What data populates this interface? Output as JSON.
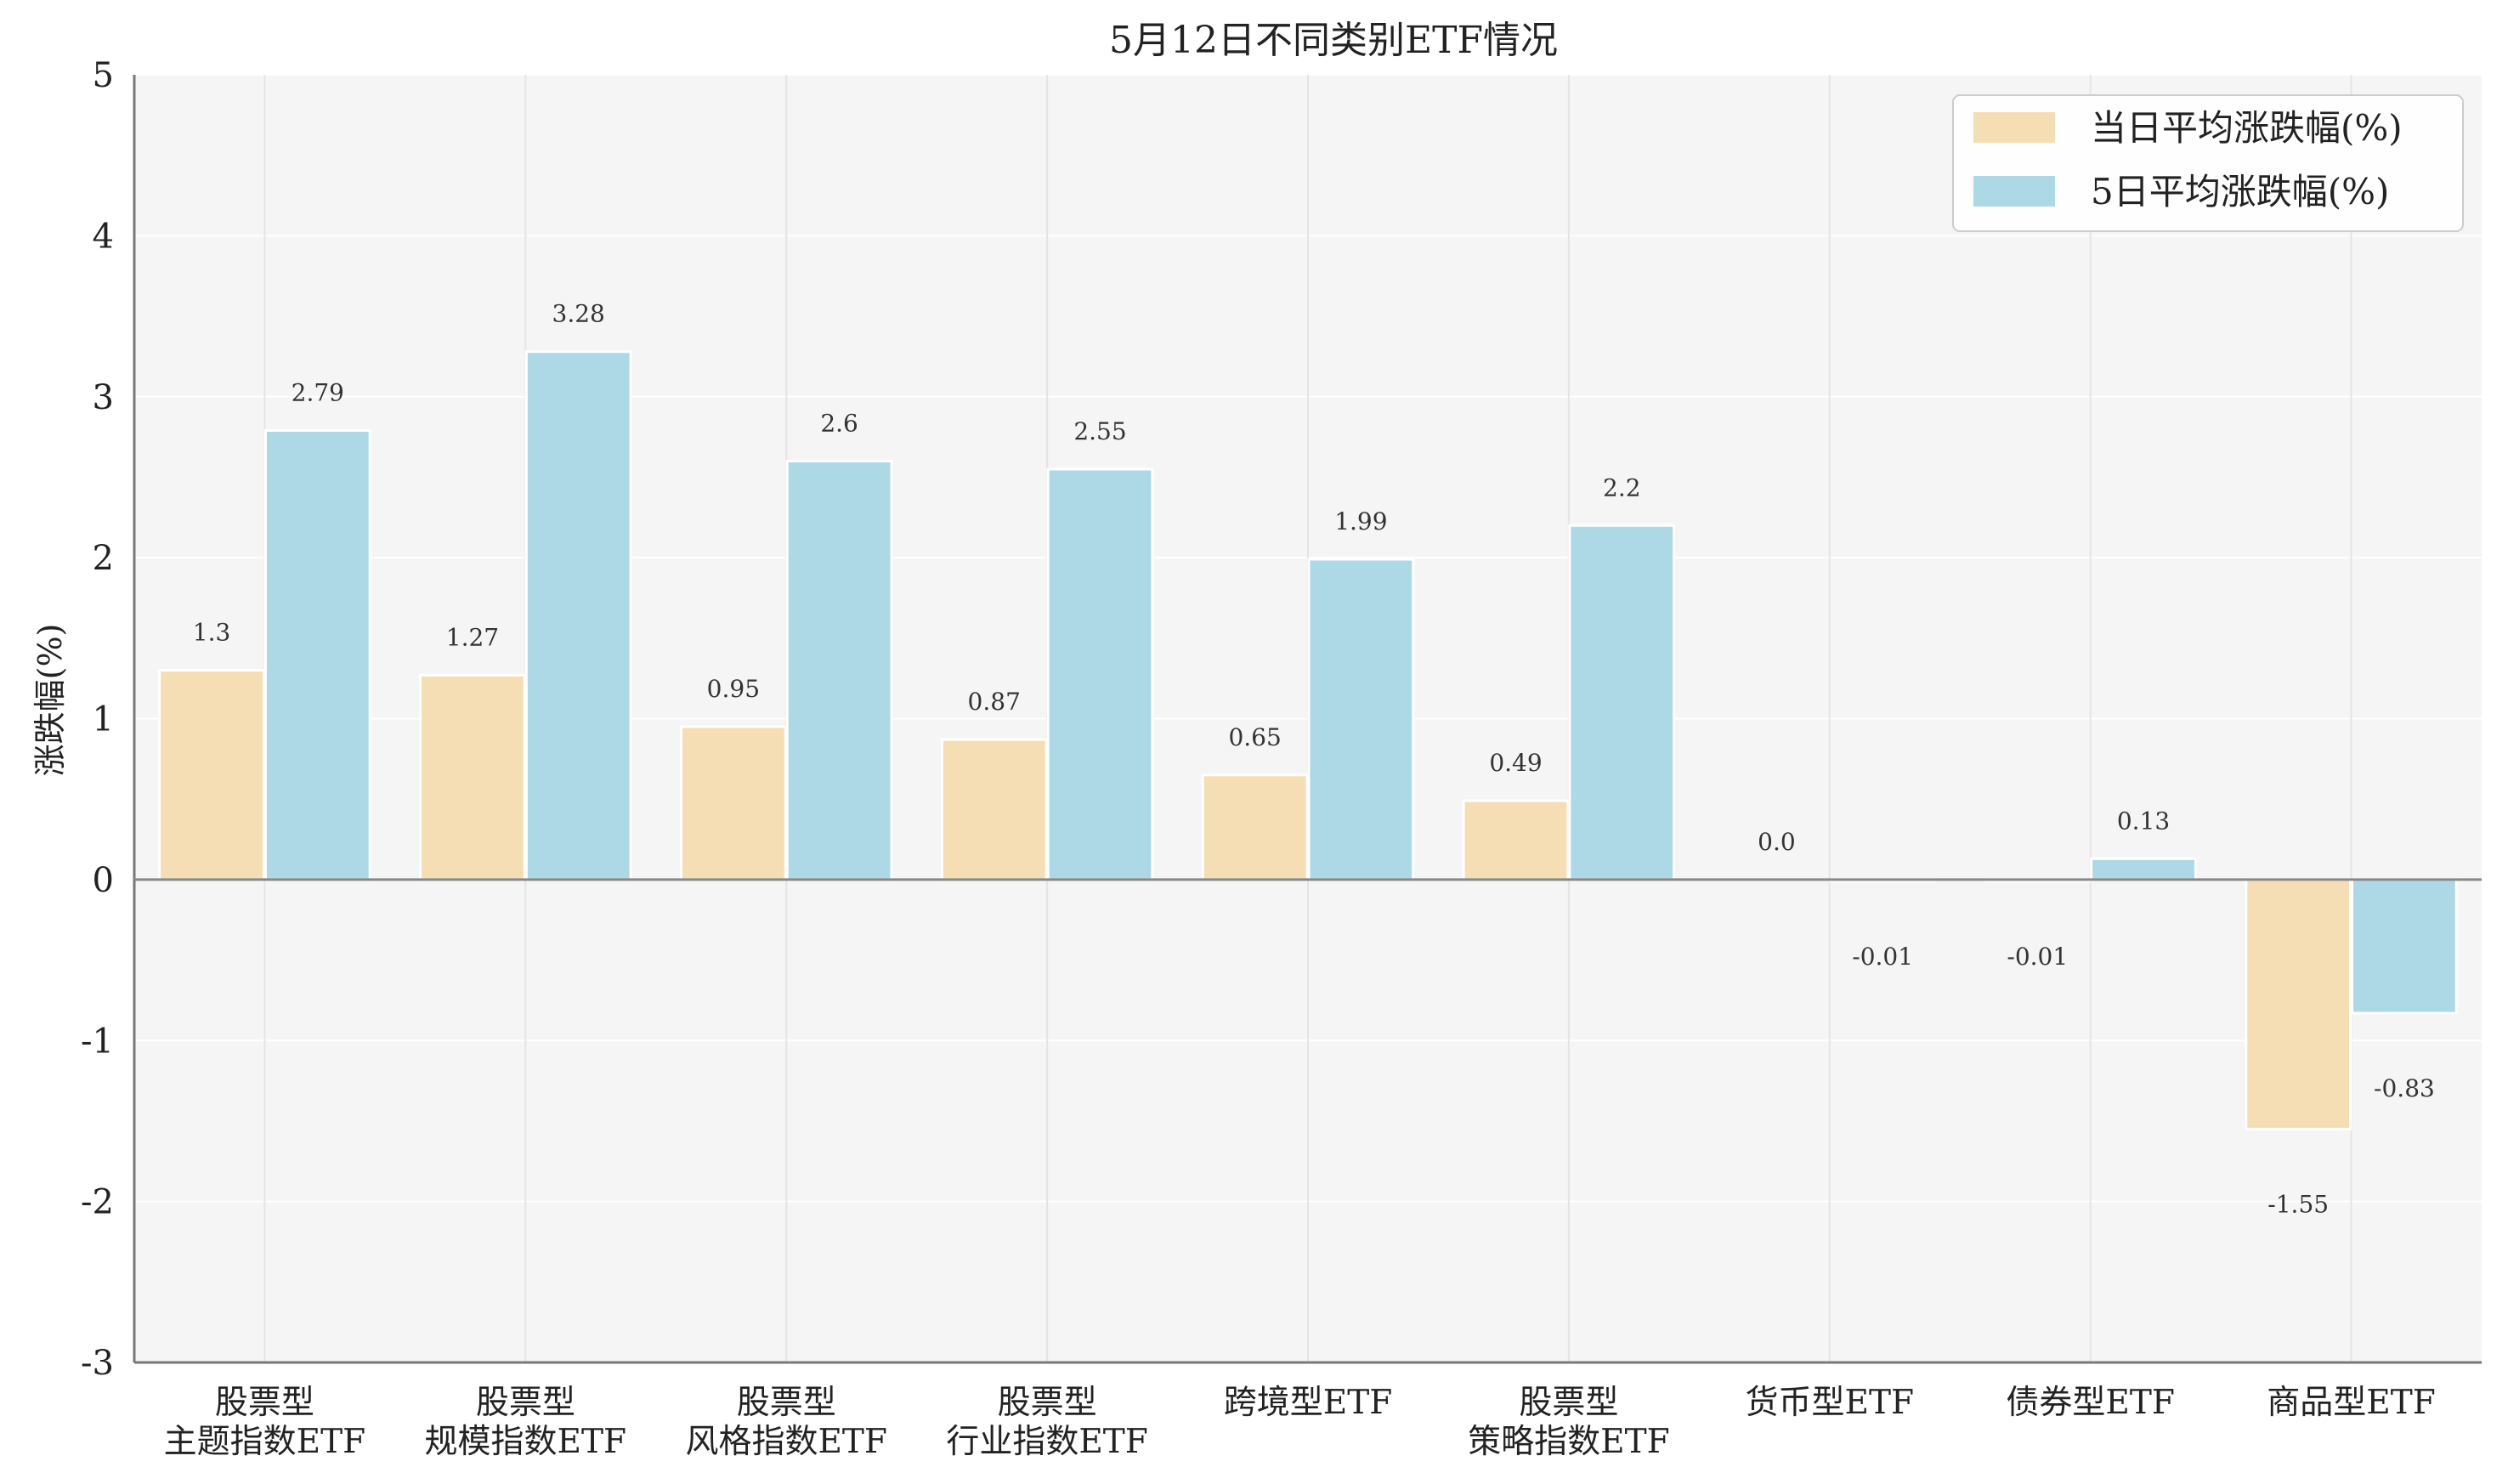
{
  "chart_data": {
    "type": "bar",
    "title": "5月12日不同类别ETF情况",
    "ylabel": "涨跌幅(%)",
    "xlabel": "",
    "ylim": [
      -3,
      5
    ],
    "yticks": [
      -3,
      -2,
      -1,
      0,
      1,
      2,
      3,
      4,
      5
    ],
    "grid": true,
    "legend_position": "top-right",
    "categories": [
      [
        "股票型",
        "主题指数ETF"
      ],
      [
        "股票型",
        "规模指数ETF"
      ],
      [
        "股票型",
        "风格指数ETF"
      ],
      [
        "股票型",
        "行业指数ETF"
      ],
      [
        "跨境型ETF"
      ],
      [
        "股票型",
        "策略指数ETF"
      ],
      [
        "货币型ETF"
      ],
      [
        "债券型ETF"
      ],
      [
        "商品型ETF"
      ]
    ],
    "series": [
      {
        "name": "当日平均涨跌幅(%)",
        "color": "#F5DEB3",
        "values": [
          1.3,
          1.27,
          0.95,
          0.87,
          0.65,
          0.49,
          0.0,
          -0.01,
          -1.55
        ],
        "labels": [
          "1.3",
          "1.27",
          "0.95",
          "0.87",
          "0.65",
          "0.49",
          "0.0",
          "-0.01",
          "-1.55"
        ]
      },
      {
        "name": "5日平均涨跌幅(%)",
        "color": "#ADD8E6",
        "values": [
          2.79,
          3.28,
          2.6,
          2.55,
          1.99,
          2.2,
          -0.01,
          0.13,
          -0.83
        ],
        "labels": [
          "2.79",
          "3.28",
          "2.6",
          "2.55",
          "1.99",
          "2.2",
          "-0.01",
          "0.13",
          "-0.83"
        ]
      }
    ]
  }
}
